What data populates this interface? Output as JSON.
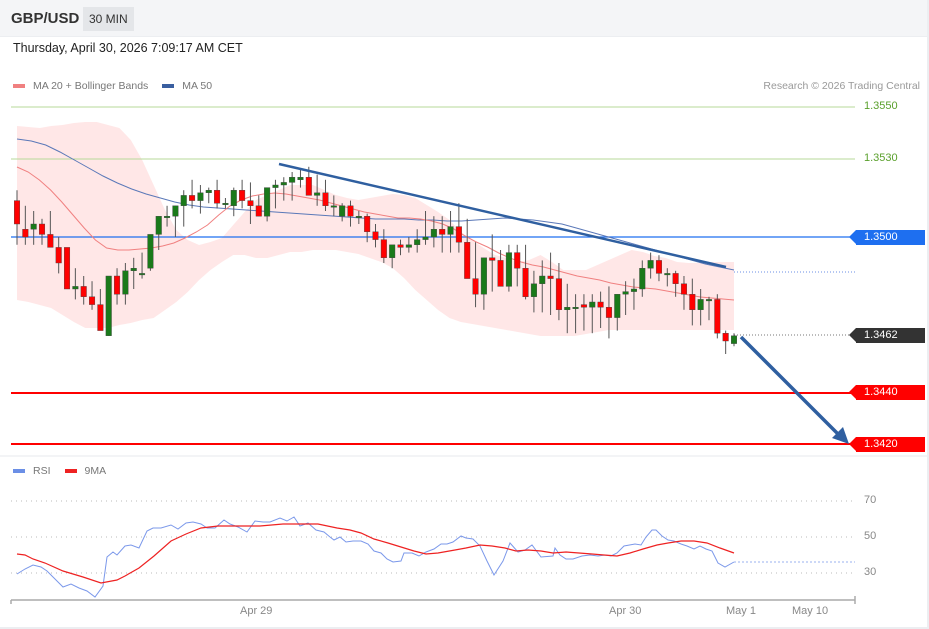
{
  "header": {
    "symbol": "GBP/USD",
    "timeframe": "30 MIN",
    "datetime": "Thursday, April 30, 2026 7:09:17 AM CET"
  },
  "price_legend": [
    {
      "label": "MA 20 + Bollinger Bands",
      "color": "#f08080"
    },
    {
      "label": "MA 50",
      "color": "#3a5fa0"
    }
  ],
  "credit": "Research © 2026 Trading Central",
  "levels": {
    "r2": {
      "label": "1.3550",
      "value": 1.355,
      "color": "#5aa02c"
    },
    "r1": {
      "label": "1.3530",
      "value": 1.353,
      "color": "#5aa02c"
    },
    "pivot": {
      "label": "1.3500",
      "value": 1.35,
      "color": "#1e6ff0"
    },
    "last": {
      "label": "1.3462",
      "value": 1.3462,
      "color": "#333333"
    },
    "s1": {
      "label": "1.3440",
      "value": 1.344,
      "color": "#ff0000"
    },
    "s2": {
      "label": "1.3420",
      "value": 1.342,
      "color": "#ff0000"
    }
  },
  "rsi_legend": [
    {
      "label": "RSI",
      "color": "#6b8fe6"
    },
    {
      "label": "9MA",
      "color": "#ee2222"
    }
  ],
  "rsi_axis": [
    "70",
    "50",
    "30"
  ],
  "x_axis": [
    "Apr 29",
    "Apr 30",
    "May 1",
    "May 10"
  ],
  "colors": {
    "up": "#1a7a1a",
    "down": "#ff0000",
    "band": "#ffe3e3",
    "trendline": "#2f5fa0"
  },
  "chart_data": [
    {
      "type": "candlestick",
      "title": "GBP/USD 30 MIN",
      "ylim": [
        1.3405,
        1.357
      ],
      "x_ticks": [
        "Apr 29",
        "Apr 30",
        "May 1",
        "May 10"
      ],
      "horizontal_levels": [
        1.355,
        1.353,
        1.35,
        1.3462,
        1.344,
        1.342
      ],
      "last_price": 1.3462,
      "ohlc": [
        [
          1.3514,
          1.3518,
          1.3497,
          1.3505
        ],
        [
          1.3503,
          1.3512,
          1.3497,
          1.35
        ],
        [
          1.3503,
          1.351,
          1.3497,
          1.3505
        ],
        [
          1.3505,
          1.3507,
          1.3497,
          1.3501
        ],
        [
          1.3501,
          1.351,
          1.3497,
          1.3496
        ],
        [
          1.3496,
          1.35,
          1.3486,
          1.349
        ],
        [
          1.3496,
          1.3494,
          1.3481,
          1.348
        ],
        [
          1.348,
          1.3488,
          1.3476,
          1.3481
        ],
        [
          1.3481,
          1.3485,
          1.3474,
          1.3477
        ],
        [
          1.3477,
          1.3483,
          1.3472,
          1.3474
        ],
        [
          1.3474,
          1.348,
          1.3465,
          1.3464
        ],
        [
          1.3462,
          1.3474,
          1.3462,
          1.3485
        ],
        [
          1.3485,
          1.3488,
          1.3474,
          1.3478
        ],
        [
          1.3478,
          1.349,
          1.3474,
          1.3487
        ],
        [
          1.3487,
          1.3492,
          1.348,
          1.3488
        ],
        [
          1.3486,
          1.3494,
          1.3484,
          1.3486
        ],
        [
          1.3488,
          1.35,
          1.3487,
          1.3501
        ],
        [
          1.3501,
          1.3508,
          1.3495,
          1.3508
        ],
        [
          1.3508,
          1.3512,
          1.3504,
          1.3508
        ],
        [
          1.3508,
          1.3512,
          1.35,
          1.3512
        ],
        [
          1.3512,
          1.3518,
          1.3504,
          1.3516
        ],
        [
          1.3516,
          1.3522,
          1.3511,
          1.3514
        ],
        [
          1.3514,
          1.352,
          1.3509,
          1.3517
        ],
        [
          1.3517,
          1.3519,
          1.3513,
          1.3518
        ],
        [
          1.3518,
          1.3522,
          1.3511,
          1.3513
        ],
        [
          1.3513,
          1.3515,
          1.3511,
          1.3513
        ],
        [
          1.3512,
          1.3519,
          1.3508,
          1.3518
        ],
        [
          1.3518,
          1.3522,
          1.3511,
          1.3514
        ],
        [
          1.3514,
          1.3521,
          1.3505,
          1.3512
        ],
        [
          1.3512,
          1.3516,
          1.3508,
          1.3508
        ],
        [
          1.3508,
          1.3518,
          1.3506,
          1.3519
        ],
        [
          1.3519,
          1.3522,
          1.3511,
          1.352
        ],
        [
          1.352,
          1.3523,
          1.3514,
          1.3521
        ],
        [
          1.3521,
          1.3525,
          1.3514,
          1.3523
        ],
        [
          1.3522,
          1.3526,
          1.3519,
          1.3523
        ],
        [
          1.3523,
          1.3527,
          1.3519,
          1.3516
        ],
        [
          1.3516,
          1.3524,
          1.3512,
          1.3517
        ],
        [
          1.3517,
          1.3522,
          1.351,
          1.3512
        ],
        [
          1.3512,
          1.3516,
          1.3508,
          1.3512
        ],
        [
          1.3508,
          1.3513,
          1.3506,
          1.3512
        ],
        [
          1.3512,
          1.3514,
          1.3504,
          1.3508
        ],
        [
          1.3508,
          1.351,
          1.3505,
          1.3508
        ],
        [
          1.3508,
          1.3509,
          1.3498,
          1.3502
        ],
        [
          1.3502,
          1.3505,
          1.3496,
          1.3499
        ],
        [
          1.3499,
          1.3503,
          1.349,
          1.3492
        ],
        [
          1.3492,
          1.3496,
          1.3488,
          1.3497
        ],
        [
          1.3497,
          1.3499,
          1.3493,
          1.3496
        ],
        [
          1.3496,
          1.35,
          1.3494,
          1.3497
        ],
        [
          1.3497,
          1.3503,
          1.3494,
          1.3499
        ],
        [
          1.3499,
          1.351,
          1.3497,
          1.35
        ],
        [
          1.35,
          1.3508,
          1.3496,
          1.3503
        ],
        [
          1.3503,
          1.3508,
          1.3494,
          1.3501
        ],
        [
          1.3501,
          1.351,
          1.3494,
          1.3504
        ],
        [
          1.3504,
          1.3513,
          1.3494,
          1.3498
        ],
        [
          1.3498,
          1.3507,
          1.3485,
          1.3484
        ],
        [
          1.3484,
          1.3498,
          1.3473,
          1.3478
        ],
        [
          1.3478,
          1.3492,
          1.3472,
          1.3492
        ],
        [
          1.3492,
          1.3501,
          1.3479,
          1.3491
        ],
        [
          1.3491,
          1.3495,
          1.3482,
          1.3481
        ],
        [
          1.3481,
          1.3497,
          1.3479,
          1.3494
        ],
        [
          1.3494,
          1.3497,
          1.3481,
          1.3488
        ],
        [
          1.3488,
          1.3497,
          1.3476,
          1.3477
        ],
        [
          1.3477,
          1.3487,
          1.3471,
          1.3482
        ],
        [
          1.3482,
          1.3491,
          1.3471,
          1.3485
        ],
        [
          1.3485,
          1.3494,
          1.347,
          1.3484
        ],
        [
          1.3484,
          1.349,
          1.3468,
          1.3472
        ],
        [
          1.3472,
          1.3482,
          1.3463,
          1.3473
        ],
        [
          1.3473,
          1.3478,
          1.3463,
          1.3473
        ],
        [
          1.3474,
          1.3478,
          1.3464,
          1.3473
        ],
        [
          1.3473,
          1.3478,
          1.3463,
          1.3475
        ],
        [
          1.3475,
          1.3479,
          1.3465,
          1.3473
        ],
        [
          1.3473,
          1.3481,
          1.3461,
          1.3469
        ],
        [
          1.3469,
          1.3478,
          1.3464,
          1.3478
        ],
        [
          1.3478,
          1.3483,
          1.347,
          1.3479
        ],
        [
          1.3479,
          1.3484,
          1.3472,
          1.348
        ],
        [
          1.348,
          1.3491,
          1.3477,
          1.3488
        ],
        [
          1.3488,
          1.3494,
          1.3484,
          1.3491
        ],
        [
          1.3491,
          1.3493,
          1.3483,
          1.3486
        ],
        [
          1.3486,
          1.3488,
          1.3481,
          1.3486
        ],
        [
          1.3486,
          1.3487,
          1.3477,
          1.3482
        ],
        [
          1.3482,
          1.3485,
          1.3472,
          1.3478
        ],
        [
          1.3478,
          1.3484,
          1.3466,
          1.3472
        ],
        [
          1.3472,
          1.348,
          1.3466,
          1.3476
        ],
        [
          1.3476,
          1.3477,
          1.3468,
          1.3476
        ],
        [
          1.3476,
          1.3478,
          1.3461,
          1.3463
        ],
        [
          1.3463,
          1.3464,
          1.3455,
          1.346
        ],
        [
          1.3459,
          1.3463,
          1.3458,
          1.3462
        ]
      ],
      "ma20": [
        1.3526,
        1.3524,
        1.3521,
        1.3518,
        1.3514,
        1.3509,
        1.3503,
        1.3497,
        1.3493,
        1.3489,
        1.3487,
        1.3486,
        1.3487,
        1.3489,
        1.3492,
        1.3496,
        1.35,
        1.3503,
        1.3507,
        1.351,
        1.3512,
        1.3513,
        1.3514,
        1.3513,
        1.3512,
        1.3511,
        1.351,
        1.3508,
        1.3505,
        1.3502,
        1.35,
        1.3498,
        1.3497,
        1.3495,
        1.3493,
        1.3491,
        1.3489,
        1.3487,
        1.3485,
        1.3483,
        1.3481
      ],
      "ma50": [
        1.3538,
        1.3535,
        1.353,
        1.3524,
        1.3519,
        1.3516,
        1.3514,
        1.3513,
        1.3512,
        1.3511,
        1.3511,
        1.351,
        1.3509,
        1.3508,
        1.3507,
        1.3506,
        1.3505,
        1.3503,
        1.3502,
        1.35,
        1.3498,
        1.3494,
        1.3492
      ],
      "trendline": {
        "from": [
          1.3529,
          "Apr 29 early"
        ],
        "to": [
          1.3488,
          "Apr 30 late"
        ]
      },
      "forecast_arrow": {
        "from": 1.3462,
        "to": 1.342
      }
    },
    {
      "type": "line",
      "title": "RSI",
      "ylim": [
        20,
        80
      ],
      "y_ticks": [
        70,
        50,
        30
      ],
      "series": [
        {
          "name": "RSI",
          "color": "#6b8fe6"
        },
        {
          "name": "9MA",
          "color": "#ee2222"
        }
      ],
      "rsi_last": 36,
      "ma_last": 41
    }
  ]
}
